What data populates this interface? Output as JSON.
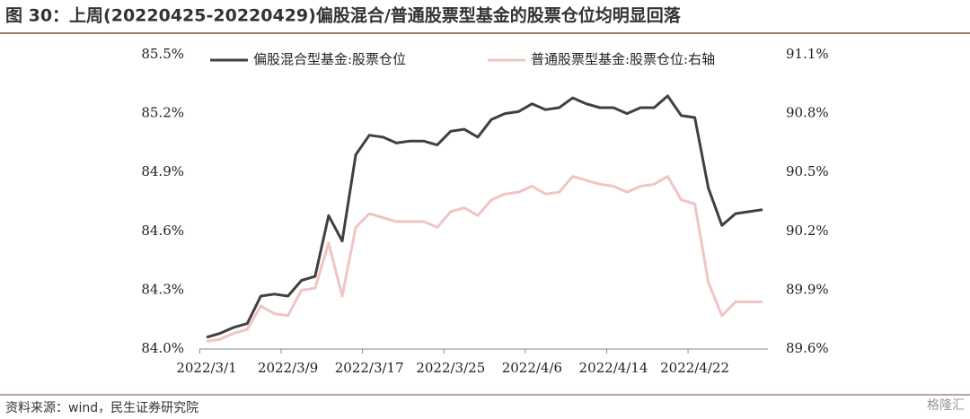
{
  "chart_data": {
    "type": "line",
    "title": "图 30：上周(20220425-20220429)偏股混合/普通股票型基金的股票仓位均明显回落",
    "source": "资料来源：wind，民生证券研究院",
    "watermark": "格隆汇",
    "categories": [
      "2022/3/1",
      null,
      null,
      null,
      null,
      null,
      "2022/3/9",
      null,
      null,
      null,
      null,
      null,
      "2022/3/17",
      null,
      null,
      null,
      null,
      null,
      "2022/3/25",
      null,
      null,
      null,
      null,
      null,
      "2022/4/6",
      null,
      null,
      null,
      null,
      null,
      "2022/4/14",
      null,
      null,
      null,
      null,
      null,
      "2022/4/22",
      null,
      null,
      null,
      null,
      null
    ],
    "series": [
      {
        "name": "偏股混合型基金:股票仓位",
        "color": "#404040",
        "axis": "y",
        "values": [
          84.06,
          84.08,
          84.11,
          84.13,
          84.27,
          84.28,
          84.27,
          84.35,
          84.37,
          84.68,
          84.55,
          84.99,
          85.09,
          85.08,
          85.05,
          85.06,
          85.06,
          85.04,
          85.11,
          85.12,
          85.08,
          85.17,
          85.2,
          85.21,
          85.25,
          85.22,
          85.23,
          85.28,
          85.25,
          85.23,
          85.23,
          85.2,
          85.23,
          85.23,
          85.29,
          85.19,
          85.18,
          84.82,
          84.63,
          84.69,
          84.7,
          84.71
        ]
      },
      {
        "name": "普通股票型基金:股票仓位:右轴",
        "color": "#f0c4c4",
        "axis": "y2",
        "values": [
          89.64,
          89.65,
          89.68,
          89.7,
          89.82,
          89.78,
          89.77,
          89.9,
          89.91,
          90.14,
          89.87,
          90.22,
          90.29,
          90.27,
          90.25,
          90.25,
          90.25,
          90.22,
          90.3,
          90.32,
          90.28,
          90.36,
          90.39,
          90.4,
          90.43,
          90.39,
          90.4,
          90.48,
          90.46,
          90.44,
          90.43,
          90.4,
          90.43,
          90.44,
          90.48,
          90.36,
          90.34,
          89.94,
          89.77,
          89.84,
          89.84,
          89.84
        ]
      }
    ],
    "ylim": [
      84.0,
      85.5
    ],
    "yticks": [
      {
        "value": 84.0,
        "label": "84.0%"
      },
      {
        "value": 84.3,
        "label": "84.3%"
      },
      {
        "value": 84.6,
        "label": "84.6%"
      },
      {
        "value": 84.9,
        "label": "84.9%"
      },
      {
        "value": 85.2,
        "label": "85.2%"
      },
      {
        "value": 85.5,
        "label": "85.5%"
      }
    ],
    "y2lim": [
      89.6,
      91.1
    ],
    "y2ticks": [
      {
        "value": 89.6,
        "label": "89.6%"
      },
      {
        "value": 89.9,
        "label": "89.9%"
      },
      {
        "value": 90.2,
        "label": "90.2%"
      },
      {
        "value": 90.5,
        "label": "90.5%"
      },
      {
        "value": 90.8,
        "label": "90.8%"
      },
      {
        "value": 91.1,
        "label": "91.1%"
      }
    ],
    "grid": false,
    "legend": "top"
  }
}
